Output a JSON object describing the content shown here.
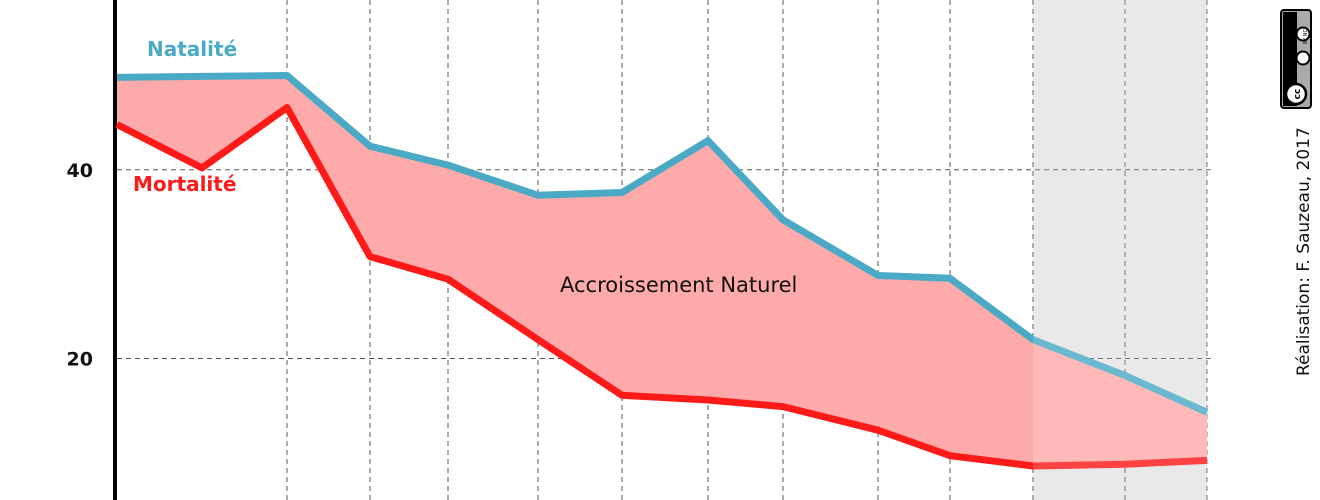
{
  "chart_data": {
    "type": "line",
    "x_index": [
      0,
      1,
      2,
      3,
      4,
      5,
      6,
      7,
      8,
      9,
      10,
      11,
      12,
      13
    ],
    "ylim": [
      5,
      58
    ],
    "yticks": [
      {
        "value": 20,
        "label": "20"
      },
      {
        "value": 40,
        "label": "40"
      }
    ],
    "grid": true,
    "series": [
      {
        "name": "Natalité",
        "color": "#4aaac6",
        "values": [
          49.8,
          49.9,
          50.0,
          42.5,
          40.5,
          37.3,
          37.6,
          43.1,
          34.7,
          28.8,
          28.5,
          22.0,
          18.2,
          14.3
        ]
      },
      {
        "name": "Mortalité",
        "color": "#ff1a1a",
        "values": [
          44.8,
          40.2,
          46.6,
          30.8,
          28.4,
          22.0,
          16.1,
          15.6,
          14.9,
          12.4,
          9.7,
          8.6,
          8.8,
          9.2
        ]
      }
    ],
    "area": {
      "label": "Accroissement Naturel",
      "color": "#ffaaaa"
    },
    "projection": {
      "from_index": 11,
      "to_index": 13,
      "color": "#e5e5e5"
    },
    "credit": "Réalisation: F. Sauzeau, 2017",
    "license": {
      "text": "BY NC",
      "badge": "creative-commons-icon"
    }
  }
}
